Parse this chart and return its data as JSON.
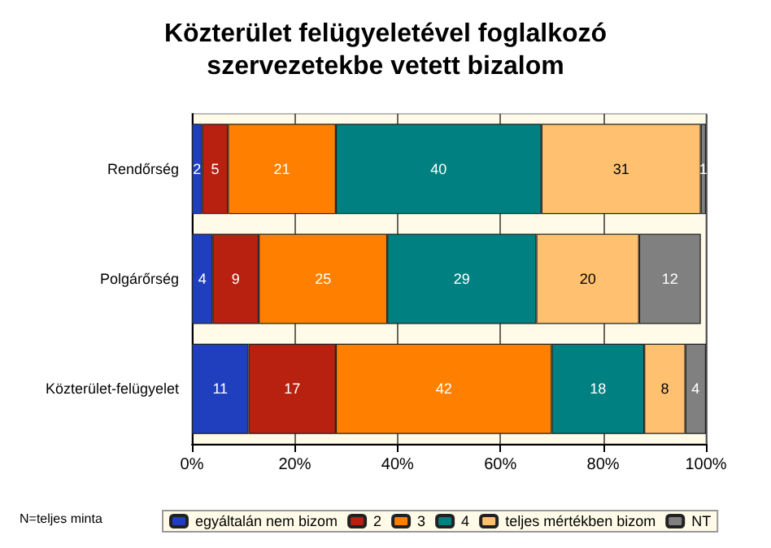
{
  "chart_data": {
    "type": "bar",
    "orientation": "horizontal",
    "stacked": true,
    "title": "Közterület felügyeletével foglalkozó\nszervezetekbe vetett bizalom",
    "categories": [
      "Rendőrség",
      "Polgárőrség",
      "Közterület-felügyelet"
    ],
    "series": [
      {
        "name": "egyáltalán nem bizom",
        "color": "#1f3fbf",
        "values": [
          2,
          4,
          11
        ]
      },
      {
        "name": "2",
        "color": "#b82010",
        "values": [
          5,
          9,
          17
        ]
      },
      {
        "name": "3",
        "color": "#ff8000",
        "values": [
          21,
          25,
          42
        ]
      },
      {
        "name": "4",
        "color": "#008080",
        "values": [
          40,
          29,
          18
        ]
      },
      {
        "name": "teljes mértékben bizom",
        "color": "#ffc070",
        "values": [
          31,
          20,
          8
        ]
      },
      {
        "name": "NT",
        "color": "#808080",
        "values": [
          1,
          12,
          4
        ]
      }
    ],
    "xlim": [
      0,
      100
    ],
    "xticks": [
      {
        "value": 0,
        "label": "0%"
      },
      {
        "value": 20,
        "label": "20%"
      },
      {
        "value": 40,
        "label": "40%"
      },
      {
        "value": 60,
        "label": "60%"
      },
      {
        "value": 80,
        "label": "80%"
      },
      {
        "value": 100,
        "label": "100%"
      }
    ],
    "grid": "x",
    "legend": "bottom",
    "data_labels": true,
    "annotations": [
      "N=teljes minta"
    ]
  }
}
